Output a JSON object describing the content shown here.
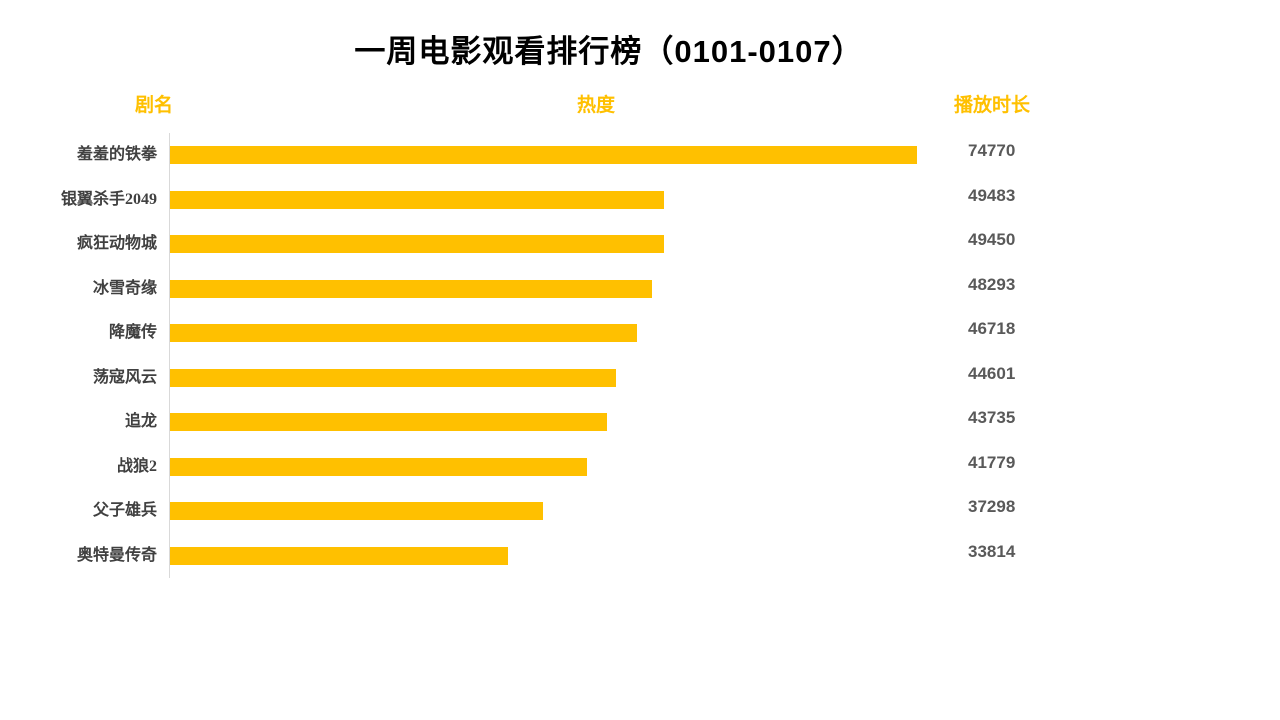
{
  "title": "一周电影观看排行榜（0101-0107）",
  "columns": {
    "name": "剧名",
    "heat": "热度",
    "duration": "播放时长"
  },
  "colors": {
    "bar": "#FFC000",
    "column_header": "#FFC000",
    "title": "#000000",
    "category_label": "#404040",
    "value_label": "#595959",
    "axis_line": "#D9D9D9",
    "background": "#ffffff"
  },
  "chart_data": {
    "type": "bar",
    "orientation": "horizontal",
    "title": "一周电影观看排行榜（0101-0107）",
    "category_label": "剧名",
    "series_label": "热度",
    "value_label": "播放时长",
    "categories": [
      "羞羞的铁拳",
      "银翼杀手2049",
      "疯狂动物城",
      "冰雪奇缘",
      "降魔传",
      "荡寇风云",
      "追龙",
      "战狼2",
      "父子雄兵",
      "奥特曼传奇"
    ],
    "values": [
      74770,
      49483,
      49450,
      48293,
      46718,
      44601,
      43735,
      41779,
      37298,
      33814
    ],
    "xlim": [
      0,
      80000
    ],
    "grid": false,
    "legend": false,
    "data_labels": true,
    "bar_color": "#FFC000"
  }
}
